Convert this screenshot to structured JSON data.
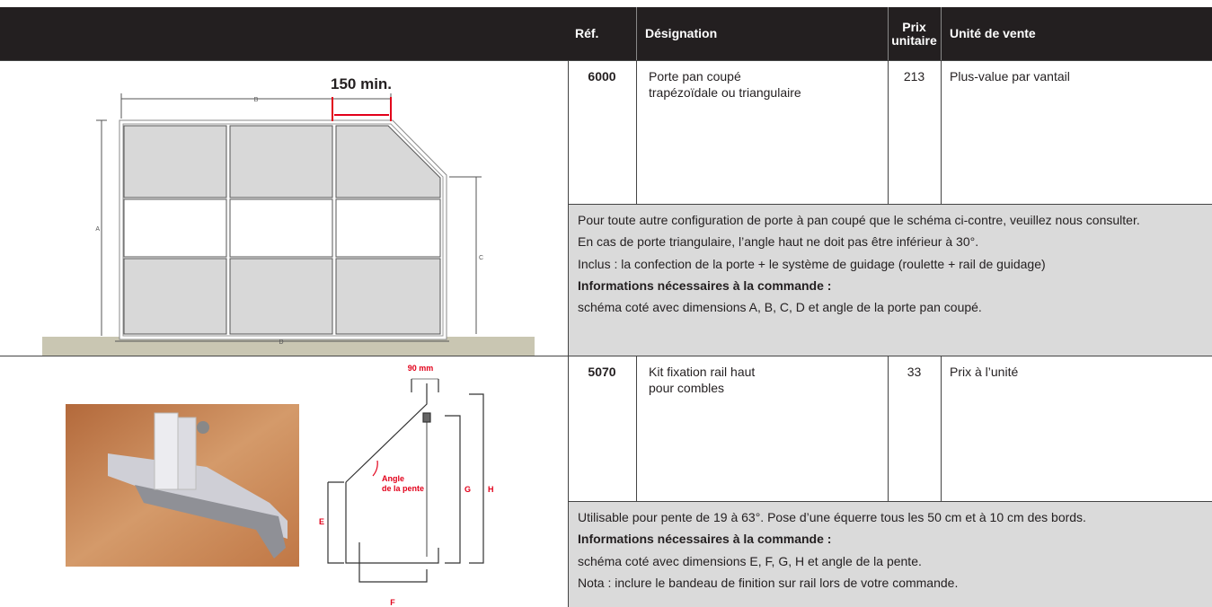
{
  "header": {
    "columns": [
      "Réf.",
      "Désignation",
      "Prix unitaire",
      "Unité de vente"
    ]
  },
  "products": [
    {
      "ref": "6000",
      "designation": [
        "Porte pan coupé",
        "trapézoïdale ou triangulaire"
      ],
      "price": 213,
      "unit": "Plus-value par vantail",
      "notes": [
        {
          "text": "Pour toute autre configuration de porte à pan coupé que le schéma ci-contre, veuillez nous consulter."
        },
        {
          "text": "En cas de porte triangulaire, l’angle haut ne doit pas être inférieur à 30°."
        },
        {
          "text": "Inclus : la confection de la porte + le système de guidage (roulette + rail de guidage)"
        },
        {
          "text": "Informations nécessaires à la commande :",
          "bold": true
        },
        {
          "text": "schéma coté avec dimensions A, B, C, D et angle de la porte pan coupé."
        }
      ],
      "diagram": {
        "labels": [
          "150 min.",
          "B",
          "A",
          "C",
          "D"
        ]
      }
    },
    {
      "ref": "5070",
      "designation": [
        "Kit fixation rail haut",
        "pour combles"
      ],
      "price": 33,
      "unit": "Prix à l’unité",
      "notes": [
        {
          "text": "Utilisable pour pente de 19 à 63°. Pose d’une équerre tous les 50 cm et à 10 cm des bords."
        },
        {
          "text": "Informations nécessaires à la commande :",
          "bold": true
        },
        {
          "text": "schéma coté avec dimensions E, F, G, H et angle de la pente."
        },
        {
          "text": "Nota : inclure le bandeau de finition sur rail lors de votre commande."
        }
      ],
      "diagram": {
        "labels": [
          "90 mm",
          "Angle",
          "de la pente",
          "E",
          "F",
          "G",
          "H"
        ]
      }
    }
  ]
}
